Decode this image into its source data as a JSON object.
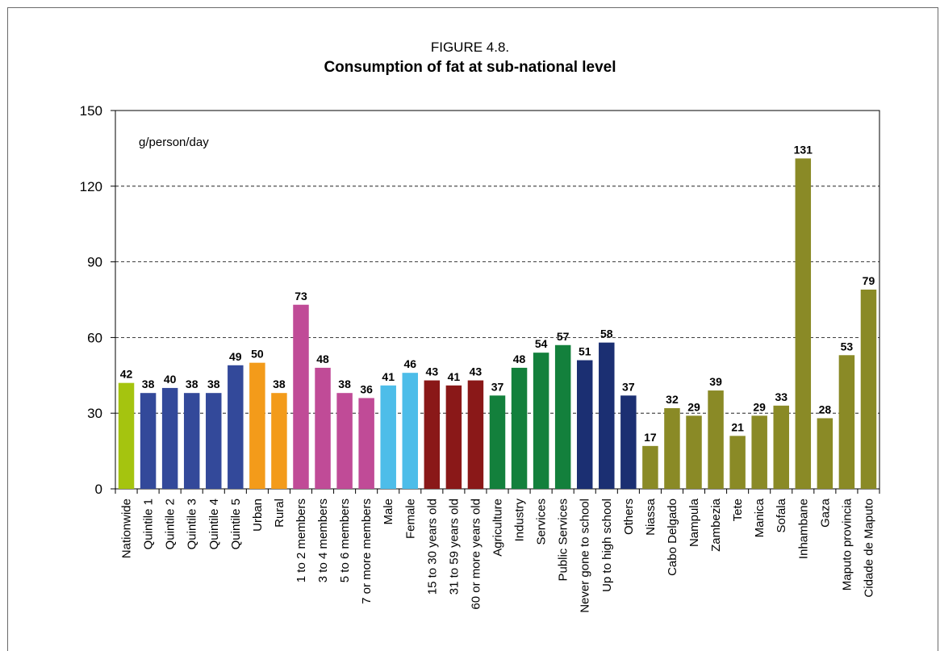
{
  "figure": {
    "label": "FIGURE 4.8.",
    "title": "Consumption of fat at sub-national level"
  },
  "chart_data": {
    "type": "bar",
    "title": "Consumption of fat at sub-national level",
    "unit_label": "g/person/day",
    "ylim": [
      0,
      150
    ],
    "yticks": [
      0,
      30,
      60,
      90,
      120,
      150
    ],
    "grid": "dashed horizontal",
    "categories": [
      "Nationwide",
      "Quintile 1",
      "Quintile 2",
      "Quintile 3",
      "Quintile 4",
      "Quintile 5",
      "Urban",
      "Rural",
      "1 to 2 members",
      "3 to 4 members",
      "5 to 6 members",
      "7 or more members",
      "Male",
      "Female",
      "15 to 30 years old",
      "31 to 59 years old",
      "60 or more years old",
      "Agriculture",
      "Industry",
      "Services",
      "Public Services",
      "Never gone to school",
      "Up to high school",
      "Others",
      "Niassa",
      "Cabo Delgado",
      "Nampula",
      "Zambezia",
      "Tete",
      "Manica",
      "Sofala",
      "Inhambane",
      "Gaza",
      "Maputo provincia",
      "Cidade de Maputo"
    ],
    "values": [
      42,
      38,
      40,
      38,
      38,
      49,
      50,
      38,
      73,
      48,
      38,
      36,
      41,
      46,
      43,
      41,
      43,
      37,
      48,
      54,
      57,
      51,
      58,
      37,
      17,
      32,
      29,
      39,
      21,
      29,
      33,
      131,
      28,
      53,
      79
    ],
    "colors": [
      "#a5c40f",
      "#33499a",
      "#33499a",
      "#33499a",
      "#33499a",
      "#33499a",
      "#f39b1a",
      "#f39b1a",
      "#c04b97",
      "#c04b97",
      "#c04b97",
      "#c04b97",
      "#4dbde9",
      "#4dbde9",
      "#8a1818",
      "#8a1818",
      "#8a1818",
      "#13803c",
      "#13803c",
      "#13803c",
      "#13803c",
      "#1b2f72",
      "#1b2f72",
      "#1b2f72",
      "#8a8a26",
      "#8a8a26",
      "#8a8a26",
      "#8a8a26",
      "#8a8a26",
      "#8a8a26",
      "#8a8a26",
      "#8a8a26",
      "#8a8a26",
      "#8a8a26",
      "#8a8a26"
    ]
  }
}
